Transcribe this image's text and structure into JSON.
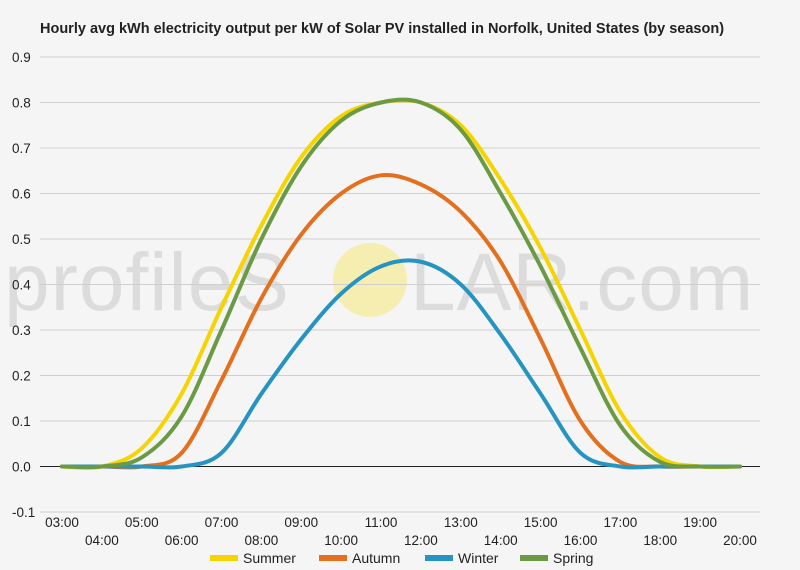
{
  "chart_data": {
    "type": "line",
    "title": "Hourly avg kWh electricity output per kW of Solar PV installed in Norfolk, United States (by season)",
    "xlabel": "",
    "ylabel": "",
    "ylim": [
      -0.1,
      0.9
    ],
    "y_ticks": [
      "-0.1",
      "0.0",
      "0.1",
      "0.2",
      "0.3",
      "0.4",
      "0.5",
      "0.6",
      "0.7",
      "0.8",
      "0.9"
    ],
    "x_ticks": [
      "03:00",
      "04:00",
      "05:00",
      "06:00",
      "07:00",
      "08:00",
      "09:00",
      "10:00",
      "11:00",
      "12:00",
      "13:00",
      "14:00",
      "15:00",
      "16:00",
      "17:00",
      "18:00",
      "19:00",
      "20:00"
    ],
    "x": [
      3,
      4,
      5,
      6,
      7,
      8,
      9,
      10,
      11,
      12,
      13,
      14,
      15,
      16,
      17,
      18,
      19,
      20
    ],
    "grid": true,
    "legend_position": "bottom",
    "series": [
      {
        "name": "Summer",
        "color": "#f5d400",
        "values": [
          0.0,
          0.0,
          0.04,
          0.16,
          0.35,
          0.53,
          0.68,
          0.77,
          0.8,
          0.8,
          0.75,
          0.63,
          0.48,
          0.3,
          0.12,
          0.02,
          0.0,
          0.0
        ]
      },
      {
        "name": "Autumn",
        "color": "#e2701f",
        "values": [
          0.0,
          0.0,
          0.0,
          0.03,
          0.19,
          0.37,
          0.51,
          0.6,
          0.64,
          0.62,
          0.56,
          0.45,
          0.28,
          0.1,
          0.01,
          0.0,
          0.0,
          0.0
        ]
      },
      {
        "name": "Winter",
        "color": "#2693c0",
        "values": [
          0.0,
          0.0,
          0.0,
          0.0,
          0.03,
          0.16,
          0.28,
          0.38,
          0.44,
          0.45,
          0.4,
          0.29,
          0.16,
          0.03,
          0.0,
          0.0,
          0.0,
          0.0
        ]
      },
      {
        "name": "Spring",
        "color": "#6b9a45",
        "values": [
          0.0,
          0.0,
          0.02,
          0.11,
          0.3,
          0.5,
          0.66,
          0.76,
          0.8,
          0.8,
          0.74,
          0.6,
          0.44,
          0.26,
          0.09,
          0.01,
          0.0,
          0.0
        ]
      }
    ]
  },
  "watermark": {
    "text_left": "profileS",
    "text_right": "LAR.com",
    "sun_color": "#f6edb0"
  }
}
